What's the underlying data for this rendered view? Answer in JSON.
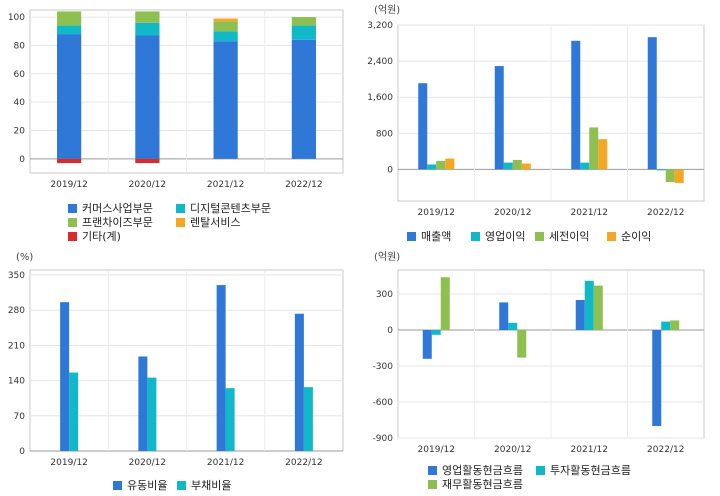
{
  "chart_data": [
    {
      "type": "bar",
      "stacked": true,
      "categories": [
        "2019/12",
        "2020/12",
        "2021/12",
        "2022/12"
      ],
      "series": [
        {
          "name": "커머스사업부문",
          "color": "#2f78d8",
          "values": [
            88,
            87,
            83,
            84
          ]
        },
        {
          "name": "디지털콘텐츠부문",
          "color": "#10b8c8",
          "values": [
            6,
            9,
            7,
            10
          ]
        },
        {
          "name": "프랜차이즈부문",
          "color": "#8dc050",
          "values": [
            10,
            8,
            7,
            6
          ]
        },
        {
          "name": "렌탈서비스",
          "color": "#f5a623",
          "values": [
            0,
            0,
            2,
            0
          ]
        },
        {
          "name": "기타(계)",
          "color": "#d62c2c",
          "values": [
            -3,
            -3,
            0,
            0
          ]
        }
      ],
      "ylim": [
        -10,
        105
      ],
      "yticks": [
        0,
        20,
        40,
        60,
        80,
        100
      ],
      "ytick_labels": [
        "0",
        "20",
        "40",
        "60",
        "80",
        "100"
      ],
      "unit": "",
      "legend_position": "bottom",
      "grid": true
    },
    {
      "type": "bar",
      "categories": [
        "2019/12",
        "2020/12",
        "2021/12",
        "2022/12"
      ],
      "series": [
        {
          "name": "매출액",
          "color": "#2f78d8",
          "values": [
            1910,
            2290,
            2850,
            2930
          ]
        },
        {
          "name": "영업이익",
          "color": "#10b8c8",
          "values": [
            110,
            150,
            150,
            -20
          ]
        },
        {
          "name": "세전이익",
          "color": "#8dc050",
          "values": [
            190,
            210,
            930,
            -280
          ]
        },
        {
          "name": "순이익",
          "color": "#f5a623",
          "values": [
            240,
            130,
            670,
            -300
          ]
        }
      ],
      "ylim": [
        -700,
        3200
      ],
      "yticks": [
        0,
        800,
        1600,
        2400,
        3200
      ],
      "ytick_labels": [
        "0",
        "800",
        "1,600",
        "2,400",
        "3,200"
      ],
      "unit": "(억원)",
      "legend_position": "bottom",
      "grid": true
    },
    {
      "type": "bar",
      "categories": [
        "2019/12",
        "2020/12",
        "2021/12",
        "2022/12"
      ],
      "series": [
        {
          "name": "유동비율",
          "color": "#2f78d8",
          "values": [
            296,
            188,
            330,
            273
          ]
        },
        {
          "name": "부채비율",
          "color": "#10b8c8",
          "values": [
            156,
            146,
            125,
            127
          ]
        }
      ],
      "ylim": [
        0,
        360
      ],
      "yticks": [
        0,
        70,
        140,
        210,
        280,
        350
      ],
      "ytick_labels": [
        "0",
        "70",
        "140",
        "210",
        "280",
        "350"
      ],
      "unit": "(%)",
      "legend_position": "bottom",
      "grid": true
    },
    {
      "type": "bar",
      "categories": [
        "2019/12",
        "2020/12",
        "2021/12",
        "2022/12"
      ],
      "series": [
        {
          "name": "영업활동현금흐름",
          "color": "#2f78d8",
          "values": [
            -240,
            230,
            250,
            -800
          ]
        },
        {
          "name": "투자활동현금흐름",
          "color": "#10b8c8",
          "values": [
            -40,
            60,
            410,
            70
          ]
        },
        {
          "name": "재무활동현금흐름",
          "color": "#8dc050",
          "values": [
            440,
            -230,
            370,
            80
          ]
        }
      ],
      "ylim": [
        -900,
        500
      ],
      "yticks": [
        -900,
        -600,
        -300,
        0,
        300
      ],
      "ytick_labels": [
        "-900",
        "-600",
        "-300",
        "0",
        "300"
      ],
      "unit": "(억원)",
      "legend_position": "bottom",
      "grid": true
    }
  ]
}
